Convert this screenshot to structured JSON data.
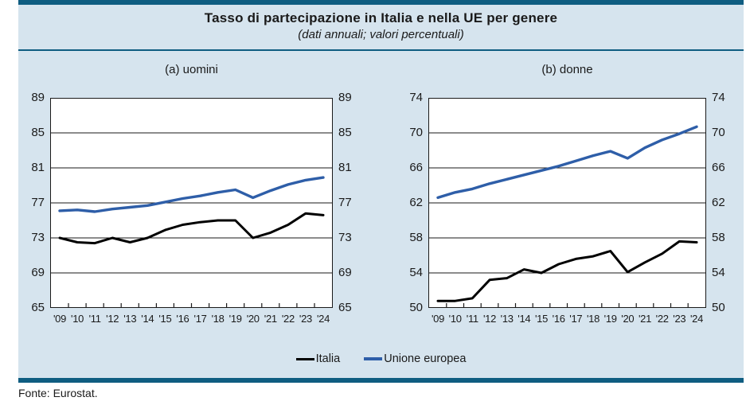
{
  "figure": {
    "title": "Tasso di partecipazione in Italia e nella UE per genere",
    "subtitle": "(dati annuali; valori percentuali)",
    "source": "Fonte: Eurostat."
  },
  "colors": {
    "box_border": "#0f5d81",
    "box_background": "#d6e4ee",
    "italia": "#000000",
    "ue": "#2e5ea8",
    "grid": "#1a1a1a"
  },
  "legend": [
    {
      "label": "Italia",
      "color_key": "italia"
    },
    {
      "label": "Unione europea",
      "color_key": "ue"
    }
  ],
  "chart_data": [
    {
      "type": "line",
      "title": "(a) uomini",
      "x": [
        "'09",
        "'10",
        "'11",
        "'12",
        "'13",
        "'14",
        "'15",
        "'16",
        "'17",
        "'18",
        "'19",
        "'20",
        "'21",
        "'22",
        "'23",
        "'24"
      ],
      "ylim": [
        65,
        89
      ],
      "ytick_step": 4,
      "grid": true,
      "legend_position": "bottom-shared",
      "series": [
        {
          "name": "Italia",
          "values": [
            73.0,
            72.5,
            72.4,
            73.0,
            72.5,
            73.0,
            73.9,
            74.5,
            74.8,
            75.0,
            75.0,
            73.0,
            73.6,
            74.5,
            75.8,
            75.6
          ]
        },
        {
          "name": "Unione europea",
          "values": [
            76.1,
            76.2,
            76.0,
            76.3,
            76.5,
            76.7,
            77.1,
            77.5,
            77.8,
            78.2,
            78.5,
            77.6,
            78.4,
            79.1,
            79.6,
            79.9
          ]
        }
      ]
    },
    {
      "type": "line",
      "title": "(b) donne",
      "x": [
        "'09",
        "'10",
        "'11",
        "'12",
        "'13",
        "'14",
        "'15",
        "'16",
        "'17",
        "'18",
        "'19",
        "'20",
        "'21",
        "'22",
        "'23",
        "'24"
      ],
      "ylim": [
        50,
        74
      ],
      "ytick_step": 4,
      "grid": true,
      "legend_position": "bottom-shared",
      "series": [
        {
          "name": "Italia",
          "values": [
            50.8,
            50.8,
            51.1,
            53.2,
            53.4,
            54.4,
            54.0,
            55.0,
            55.6,
            55.9,
            56.5,
            54.1,
            55.2,
            56.2,
            57.6,
            57.5
          ]
        },
        {
          "name": "Unione europea",
          "values": [
            62.6,
            63.2,
            63.6,
            64.2,
            64.7,
            65.2,
            65.7,
            66.2,
            66.8,
            67.4,
            67.9,
            67.1,
            68.3,
            69.2,
            69.9,
            70.7
          ]
        }
      ]
    }
  ]
}
